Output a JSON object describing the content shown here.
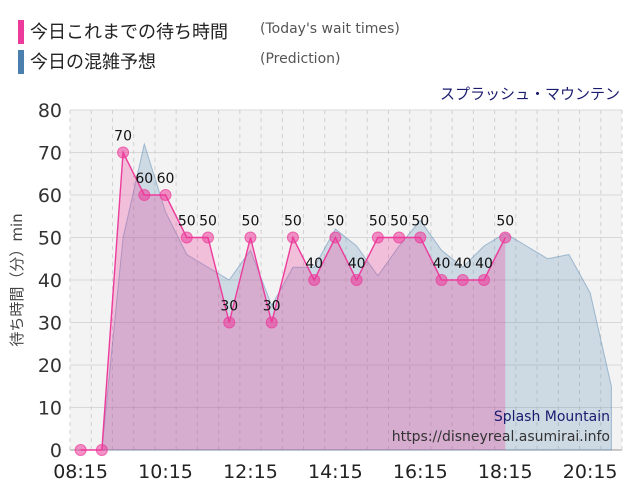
{
  "legend": [
    {
      "label": "今日これまでの待ち時間",
      "sublabel": "(Today's wait times)",
      "color": "#ec3b9b"
    },
    {
      "label": "今日の混雑予想",
      "sublabel": "(Prediction)",
      "color": "#4a7fae"
    }
  ],
  "attraction_name": "スプラッシュ・マウンテン",
  "watermark": {
    "name": "Splash Mountain",
    "url": "https://disneyreal.asumirai.info"
  },
  "chart_data": {
    "type": "area",
    "ylabel": "待ち時間（分）min",
    "ylim": [
      0,
      80
    ],
    "yticks": [
      0,
      10,
      20,
      30,
      40,
      50,
      60,
      70,
      80
    ],
    "xlim": [
      "08:00",
      "21:00"
    ],
    "xticks": [
      "08:15",
      "10:15",
      "12:15",
      "14:15",
      "16:15",
      "18:15",
      "20:15"
    ],
    "grid": true,
    "series": [
      {
        "name": "今日これまでの待ち時間",
        "color": "#ec3b9b",
        "points": [
          [
            "08:15",
            0
          ],
          [
            "08:45",
            0
          ],
          [
            "09:15",
            70
          ],
          [
            "09:45",
            60
          ],
          [
            "10:15",
            60
          ],
          [
            "10:45",
            50
          ],
          [
            "11:15",
            50
          ],
          [
            "11:45",
            30
          ],
          [
            "12:15",
            50
          ],
          [
            "12:45",
            30
          ],
          [
            "13:15",
            50
          ],
          [
            "13:45",
            40
          ],
          [
            "14:15",
            50
          ],
          [
            "14:45",
            40
          ],
          [
            "15:15",
            50
          ],
          [
            "15:45",
            50
          ],
          [
            "16:15",
            50
          ],
          [
            "16:45",
            40
          ],
          [
            "17:15",
            40
          ],
          [
            "17:45",
            40
          ],
          [
            "18:15",
            50
          ]
        ]
      },
      {
        "name": "今日の混雑予想",
        "color": "#4a7fae",
        "points": [
          [
            "08:15",
            0
          ],
          [
            "08:45",
            0
          ],
          [
            "09:15",
            50
          ],
          [
            "09:45",
            72
          ],
          [
            "10:15",
            56
          ],
          [
            "10:45",
            46
          ],
          [
            "11:15",
            43
          ],
          [
            "11:45",
            40
          ],
          [
            "12:15",
            47
          ],
          [
            "12:45",
            34
          ],
          [
            "13:15",
            43
          ],
          [
            "13:45",
            43
          ],
          [
            "14:15",
            52
          ],
          [
            "14:45",
            48
          ],
          [
            "15:15",
            41
          ],
          [
            "15:45",
            48
          ],
          [
            "16:15",
            54
          ],
          [
            "16:45",
            47
          ],
          [
            "17:15",
            43
          ],
          [
            "17:45",
            48
          ],
          [
            "18:15",
            51
          ],
          [
            "18:45",
            48
          ],
          [
            "19:15",
            45
          ],
          [
            "19:45",
            46
          ],
          [
            "20:15",
            37
          ],
          [
            "20:45",
            15
          ]
        ]
      }
    ]
  }
}
